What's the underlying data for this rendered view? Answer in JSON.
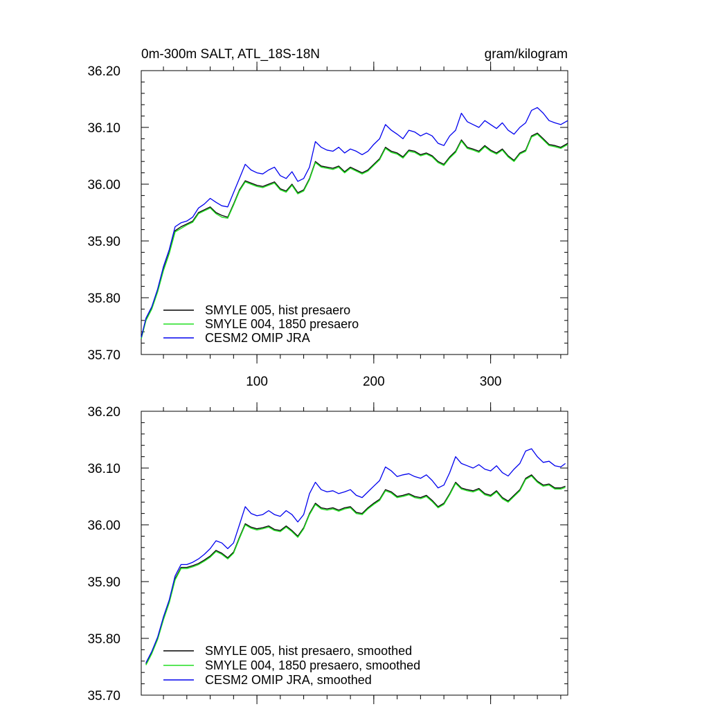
{
  "header": {
    "title": "0m-300m SALT, ATL_18S-18N",
    "units": "gram/kilogram"
  },
  "colors": {
    "smyle005": "#000000",
    "smyle004": "#22dd22",
    "omip": "#0000ee"
  },
  "chart_data": [
    {
      "type": "line",
      "xlim": [
        1,
        366
      ],
      "ylim": [
        35.7,
        36.2
      ],
      "xticks": [
        100,
        200,
        300
      ],
      "xtick_labels": [
        "100",
        "200",
        "300"
      ],
      "yticks": [
        35.7,
        35.8,
        35.9,
        36.0,
        36.1,
        36.2
      ],
      "ytick_labels": [
        "35.70",
        "35.80",
        "35.90",
        "36.00",
        "36.10",
        "36.20"
      ],
      "legend_position": "bottom-left",
      "legend": [
        "SMYLE 005, hist presaero",
        "SMYLE 004, 1850 presaero",
        "CESM2 OMIP JRA"
      ],
      "series": [
        {
          "name": "SMYLE 005, hist presaero",
          "color": "#000000",
          "x": [
            1,
            5,
            10,
            15,
            20,
            25,
            30,
            35,
            40,
            45,
            50,
            55,
            60,
            65,
            70,
            75,
            80,
            85,
            90,
            95,
            100,
            105,
            110,
            115,
            120,
            125,
            130,
            135,
            140,
            145,
            150,
            155,
            160,
            165,
            170,
            175,
            180,
            185,
            190,
            195,
            200,
            205,
            210,
            215,
            220,
            225,
            230,
            235,
            240,
            245,
            250,
            255,
            260,
            265,
            270,
            275,
            280,
            285,
            290,
            295,
            300,
            305,
            310,
            315,
            320,
            325,
            330,
            335,
            340,
            345,
            350,
            355,
            360,
            366
          ],
          "values": [
            35.728,
            35.762,
            35.782,
            35.812,
            35.85,
            35.88,
            35.918,
            35.925,
            35.93,
            35.935,
            35.95,
            35.955,
            35.96,
            35.95,
            35.945,
            35.942,
            35.965,
            35.99,
            36.006,
            36.002,
            35.998,
            35.996,
            36.0,
            36.004,
            35.992,
            35.988,
            36.0,
            35.985,
            35.99,
            36.01,
            36.04,
            36.032,
            36.03,
            36.028,
            36.032,
            36.022,
            36.03,
            36.025,
            36.02,
            36.025,
            36.035,
            36.045,
            36.065,
            36.058,
            36.055,
            36.048,
            36.06,
            36.058,
            36.052,
            36.055,
            36.05,
            36.04,
            36.035,
            36.048,
            36.058,
            36.078,
            36.065,
            36.062,
            36.058,
            36.068,
            36.06,
            36.055,
            36.062,
            36.05,
            36.042,
            36.055,
            36.06,
            36.085,
            36.09,
            36.08,
            36.07,
            36.068,
            36.065,
            36.072
          ]
        },
        {
          "name": "SMYLE 004, 1850 presaero",
          "color": "#22dd22",
          "x": [
            1,
            5,
            10,
            15,
            20,
            25,
            30,
            35,
            40,
            45,
            50,
            55,
            60,
            65,
            70,
            75,
            80,
            85,
            90,
            95,
            100,
            105,
            110,
            115,
            120,
            125,
            130,
            135,
            140,
            145,
            150,
            155,
            160,
            165,
            170,
            175,
            180,
            185,
            190,
            195,
            200,
            205,
            210,
            215,
            220,
            225,
            230,
            235,
            240,
            245,
            250,
            255,
            260,
            265,
            270,
            275,
            280,
            285,
            290,
            295,
            300,
            305,
            310,
            315,
            320,
            325,
            330,
            335,
            340,
            345,
            350,
            355,
            360,
            366
          ],
          "values": [
            35.728,
            35.76,
            35.78,
            35.81,
            35.848,
            35.878,
            35.916,
            35.922,
            35.928,
            35.933,
            35.948,
            35.953,
            35.958,
            35.948,
            35.942,
            35.94,
            35.963,
            35.988,
            36.004,
            36.0,
            35.996,
            35.994,
            35.998,
            36.002,
            35.99,
            35.986,
            35.998,
            35.983,
            35.988,
            36.008,
            36.038,
            36.03,
            36.028,
            36.026,
            36.03,
            36.02,
            36.028,
            36.023,
            36.018,
            36.023,
            36.033,
            36.043,
            36.063,
            36.056,
            36.053,
            36.046,
            36.058,
            36.056,
            36.05,
            36.053,
            36.048,
            36.038,
            36.033,
            36.046,
            36.056,
            36.076,
            36.063,
            36.06,
            36.056,
            36.066,
            36.058,
            36.053,
            36.06,
            36.048,
            36.04,
            36.053,
            36.058,
            36.083,
            36.088,
            36.078,
            36.068,
            36.066,
            36.063,
            36.07
          ]
        },
        {
          "name": "CESM2 OMIP JRA",
          "color": "#0000ee",
          "x": [
            1,
            5,
            10,
            15,
            20,
            25,
            30,
            35,
            40,
            45,
            50,
            55,
            60,
            65,
            70,
            75,
            80,
            85,
            90,
            95,
            100,
            105,
            110,
            115,
            120,
            125,
            130,
            135,
            140,
            145,
            150,
            155,
            160,
            165,
            170,
            175,
            180,
            185,
            190,
            195,
            200,
            205,
            210,
            215,
            220,
            225,
            230,
            235,
            240,
            245,
            250,
            255,
            260,
            265,
            270,
            275,
            280,
            285,
            290,
            295,
            300,
            305,
            310,
            315,
            320,
            325,
            330,
            335,
            340,
            345,
            350,
            355,
            360,
            366
          ],
          "values": [
            35.73,
            35.764,
            35.784,
            35.815,
            35.855,
            35.885,
            35.925,
            35.932,
            35.935,
            35.942,
            35.958,
            35.965,
            35.975,
            35.968,
            35.962,
            35.96,
            35.985,
            36.01,
            36.035,
            36.025,
            36.02,
            36.018,
            36.025,
            36.03,
            36.015,
            36.01,
            36.022,
            36.005,
            36.01,
            36.03,
            36.075,
            36.065,
            36.06,
            36.058,
            36.065,
            36.055,
            36.062,
            36.058,
            36.052,
            36.058,
            36.07,
            36.08,
            36.105,
            36.095,
            36.088,
            36.08,
            36.095,
            36.092,
            36.085,
            36.09,
            36.085,
            36.072,
            36.068,
            36.085,
            36.095,
            36.125,
            36.11,
            36.105,
            36.1,
            36.112,
            36.105,
            36.098,
            36.108,
            36.095,
            36.088,
            36.1,
            36.108,
            36.13,
            36.135,
            36.125,
            36.112,
            36.108,
            36.105,
            36.112
          ]
        }
      ]
    },
    {
      "type": "line",
      "xlim": [
        1,
        366
      ],
      "ylim": [
        35.7,
        36.2
      ],
      "xticks": [
        100,
        200,
        300
      ],
      "xtick_labels": [
        "",
        "",
        ""
      ],
      "yticks": [
        35.7,
        35.8,
        35.9,
        36.0,
        36.1,
        36.2
      ],
      "ytick_labels": [
        "35.70",
        "35.80",
        "35.90",
        "36.00",
        "36.10",
        "36.20"
      ],
      "legend_position": "bottom-left",
      "legend": [
        "SMYLE 005, hist presaero, smoothed",
        "SMYLE 004, 1850 presaero, smoothed",
        "CESM2 OMIP JRA, smoothed"
      ],
      "series": [
        {
          "name": "SMYLE 005, hist presaero, smoothed",
          "color": "#000000",
          "x": [
            5,
            10,
            15,
            20,
            25,
            30,
            35,
            40,
            45,
            50,
            55,
            60,
            65,
            70,
            75,
            80,
            85,
            90,
            95,
            100,
            105,
            110,
            115,
            120,
            125,
            130,
            135,
            140,
            145,
            150,
            155,
            160,
            165,
            170,
            175,
            180,
            185,
            190,
            195,
            200,
            205,
            210,
            215,
            220,
            225,
            230,
            235,
            240,
            245,
            250,
            255,
            260,
            265,
            270,
            275,
            280,
            285,
            290,
            295,
            300,
            305,
            310,
            315,
            320,
            325,
            330,
            335,
            340,
            345,
            350,
            355,
            360,
            364
          ],
          "values": [
            35.755,
            35.775,
            35.8,
            35.835,
            35.865,
            35.905,
            35.925,
            35.925,
            35.928,
            35.932,
            35.938,
            35.945,
            35.955,
            35.95,
            35.942,
            35.952,
            35.978,
            36.002,
            35.996,
            35.993,
            35.995,
            35.998,
            35.992,
            35.99,
            35.998,
            35.99,
            35.98,
            35.995,
            36.02,
            36.038,
            36.03,
            36.028,
            36.03,
            36.026,
            36.03,
            36.032,
            36.022,
            36.02,
            36.03,
            36.038,
            36.045,
            36.062,
            36.058,
            36.05,
            36.052,
            36.055,
            36.05,
            36.048,
            36.052,
            36.043,
            36.032,
            36.038,
            36.055,
            36.075,
            36.065,
            36.062,
            36.06,
            36.064,
            36.055,
            36.052,
            36.06,
            36.048,
            36.042,
            36.052,
            36.062,
            36.082,
            36.088,
            36.077,
            36.07,
            36.072,
            36.065,
            36.065,
            36.068
          ]
        },
        {
          "name": "SMYLE 004, 1850 presaero, smoothed",
          "color": "#22dd22",
          "x": [
            5,
            10,
            15,
            20,
            25,
            30,
            35,
            40,
            45,
            50,
            55,
            60,
            65,
            70,
            75,
            80,
            85,
            90,
            95,
            100,
            105,
            110,
            115,
            120,
            125,
            130,
            135,
            140,
            145,
            150,
            155,
            160,
            165,
            170,
            175,
            180,
            185,
            190,
            195,
            200,
            205,
            210,
            215,
            220,
            225,
            230,
            235,
            240,
            245,
            250,
            255,
            260,
            265,
            270,
            275,
            280,
            285,
            290,
            295,
            300,
            305,
            310,
            315,
            320,
            325,
            330,
            335,
            340,
            345,
            350,
            355,
            360,
            364
          ],
          "values": [
            35.753,
            35.773,
            35.798,
            35.833,
            35.863,
            35.903,
            35.923,
            35.923,
            35.926,
            35.93,
            35.936,
            35.943,
            35.953,
            35.948,
            35.94,
            35.95,
            35.976,
            36.0,
            35.994,
            35.991,
            35.993,
            35.996,
            35.99,
            35.988,
            35.996,
            35.988,
            35.978,
            35.993,
            36.018,
            36.036,
            36.028,
            36.026,
            36.028,
            36.024,
            36.028,
            36.03,
            36.02,
            36.018,
            36.028,
            36.036,
            36.043,
            36.06,
            36.056,
            36.048,
            36.05,
            36.053,
            36.048,
            36.046,
            36.05,
            36.041,
            36.03,
            36.036,
            36.053,
            36.073,
            36.063,
            36.06,
            36.058,
            36.062,
            36.053,
            36.05,
            36.058,
            36.046,
            36.04,
            36.05,
            36.06,
            36.08,
            36.086,
            36.075,
            36.068,
            36.07,
            36.063,
            36.063,
            36.066
          ]
        },
        {
          "name": "CESM2 OMIP JRA, smoothed",
          "color": "#0000ee",
          "x": [
            5,
            10,
            15,
            20,
            25,
            30,
            35,
            40,
            45,
            50,
            55,
            60,
            65,
            70,
            75,
            80,
            85,
            90,
            95,
            100,
            105,
            110,
            115,
            120,
            125,
            130,
            135,
            140,
            145,
            150,
            155,
            160,
            165,
            170,
            175,
            180,
            185,
            190,
            195,
            200,
            205,
            210,
            215,
            220,
            225,
            230,
            235,
            240,
            245,
            250,
            255,
            260,
            265,
            270,
            275,
            280,
            285,
            290,
            295,
            300,
            305,
            310,
            315,
            320,
            325,
            330,
            335,
            340,
            345,
            350,
            355,
            360,
            364
          ],
          "values": [
            35.757,
            35.777,
            35.802,
            35.838,
            35.868,
            35.91,
            35.93,
            35.93,
            35.934,
            35.94,
            35.948,
            35.958,
            35.972,
            35.968,
            35.958,
            35.968,
            36.0,
            36.032,
            36.02,
            36.016,
            36.018,
            36.025,
            36.018,
            36.015,
            36.025,
            36.018,
            36.005,
            36.018,
            36.055,
            36.075,
            36.062,
            36.058,
            36.06,
            36.055,
            36.058,
            36.062,
            36.052,
            36.048,
            36.058,
            36.068,
            36.078,
            36.102,
            36.095,
            36.085,
            36.088,
            36.09,
            36.085,
            36.082,
            36.088,
            36.078,
            36.065,
            36.07,
            36.092,
            36.12,
            36.108,
            36.104,
            36.1,
            36.106,
            36.098,
            36.095,
            36.104,
            36.092,
            36.086,
            36.098,
            36.108,
            36.13,
            36.134,
            36.12,
            36.11,
            36.112,
            36.104,
            36.102,
            36.108
          ]
        }
      ]
    }
  ]
}
